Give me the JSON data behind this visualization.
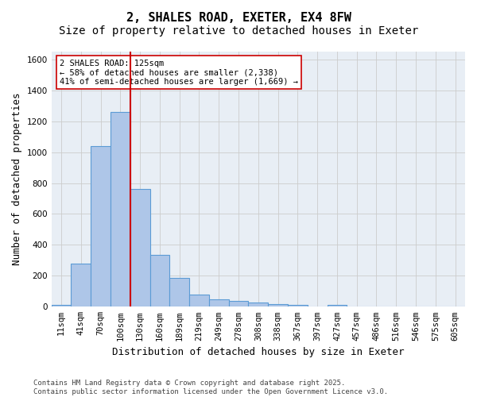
{
  "title1": "2, SHALES ROAD, EXETER, EX4 8FW",
  "title2": "Size of property relative to detached houses in Exeter",
  "xlabel": "Distribution of detached houses by size in Exeter",
  "ylabel": "Number of detached properties",
  "bar_values": [
    10,
    280,
    1040,
    1260,
    760,
    335,
    185,
    80,
    50,
    35,
    25,
    18,
    12,
    0,
    12,
    0,
    0,
    0,
    0,
    0,
    0
  ],
  "categories": [
    "11sqm",
    "41sqm",
    "70sqm",
    "100sqm",
    "130sqm",
    "160sqm",
    "189sqm",
    "219sqm",
    "249sqm",
    "278sqm",
    "308sqm",
    "338sqm",
    "367sqm",
    "397sqm",
    "427sqm",
    "457sqm",
    "486sqm",
    "516sqm",
    "546sqm",
    "575sqm",
    "605sqm"
  ],
  "bar_color": "#aec6e8",
  "bar_edge_color": "#5b9bd5",
  "vline_pos": 3.5,
  "vline_color": "#cc0000",
  "annotation_text": "2 SHALES ROAD: 125sqm\n← 58% of detached houses are smaller (2,338)\n41% of semi-detached houses are larger (1,669) →",
  "annotation_box_color": "#cc0000",
  "ylim": [
    0,
    1650
  ],
  "yticks": [
    0,
    200,
    400,
    600,
    800,
    1000,
    1200,
    1400,
    1600
  ],
  "grid_color": "#cccccc",
  "bg_color": "#e8eef5",
  "footer": "Contains HM Land Registry data © Crown copyright and database right 2025.\nContains public sector information licensed under the Open Government Licence v3.0.",
  "title_fontsize": 11,
  "subtitle_fontsize": 10,
  "axis_label_fontsize": 9,
  "tick_fontsize": 7.5,
  "annotation_fontsize": 7.5,
  "footer_fontsize": 6.5
}
